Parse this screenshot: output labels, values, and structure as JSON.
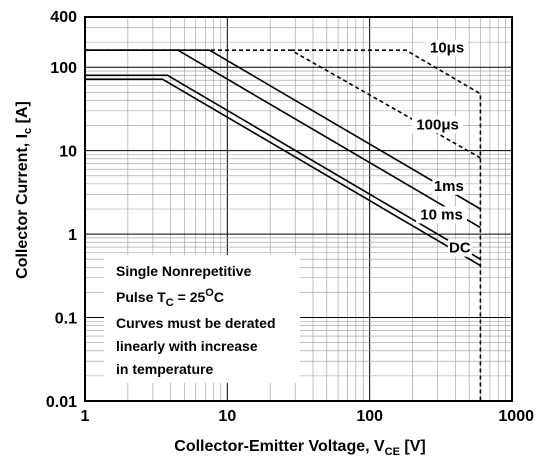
{
  "chart_data": {
    "type": "line",
    "title": "",
    "xlabel": "Collector-Emitter Voltage, V",
    "xlabel_sub": "CE",
    "xlabel_unit": " [V]",
    "ylabel": "Collector Current, I",
    "ylabel_sub": "c",
    "ylabel_unit": " [A]",
    "xscale": "log",
    "yscale": "log",
    "xlim": [
      1,
      1000
    ],
    "ylim": [
      0.01,
      400
    ],
    "grid": true,
    "x_tick_labels": [
      {
        "value": 1,
        "label": "1"
      },
      {
        "value": 10,
        "label": "10"
      },
      {
        "value": 100,
        "label": "100"
      },
      {
        "value": 1000,
        "label": "1000"
      }
    ],
    "y_tick_labels": [
      {
        "value": 0.01,
        "label": "0.01"
      },
      {
        "value": 0.1,
        "label": "0.1"
      },
      {
        "value": 1,
        "label": "1"
      },
      {
        "value": 10,
        "label": "10"
      },
      {
        "value": 100,
        "label": "100"
      },
      {
        "value": 400,
        "label": "400"
      }
    ],
    "series": [
      {
        "name": "10μs",
        "style": "dashed",
        "points": [
          [
            28,
            160
          ],
          [
            180,
            160
          ],
          [
            600,
            48
          ],
          [
            600,
            0.01
          ]
        ]
      },
      {
        "name": "100μs",
        "style": "dashed",
        "points": [
          [
            1,
            160
          ],
          [
            28,
            160
          ],
          [
            600,
            8.2
          ]
        ]
      },
      {
        "name": "1ms",
        "style": "solid",
        "points": [
          [
            1,
            160
          ],
          [
            7.5,
            160
          ],
          [
            600,
            2.0
          ]
        ]
      },
      {
        "name": "10 ms",
        "style": "solid",
        "points": [
          [
            1,
            160
          ],
          [
            4.5,
            160
          ],
          [
            600,
            1.2
          ]
        ]
      },
      {
        "name": "DC",
        "style": "solid",
        "points": [
          [
            1,
            80
          ],
          [
            3.8,
            80
          ],
          [
            600,
            0.5
          ]
        ]
      },
      {
        "name": "",
        "style": "solid",
        "points": [
          [
            1,
            72
          ],
          [
            3.5,
            72
          ],
          [
            600,
            0.42
          ]
        ]
      }
    ],
    "curve_labels": [
      {
        "text": "10μs",
        "x": 350,
        "y": 150
      },
      {
        "text": "100μs",
        "x": 300,
        "y": 18
      },
      {
        "text": "1ms",
        "x": 360,
        "y": 3.3
      },
      {
        "text": "10 ms",
        "x": 320,
        "y": 1.5
      },
      {
        "text": "DC",
        "x": 430,
        "y": 0.6
      }
    ],
    "annotation_lines": [
      "Single Nonrepetitive",
      "Pulse T",
      "Curves must be derated",
      "linearly with increase",
      "in temperature"
    ],
    "annotation_pulse": {
      "sub": "C",
      "eq": " = 25",
      "sup": "O",
      "unit": "C"
    }
  }
}
